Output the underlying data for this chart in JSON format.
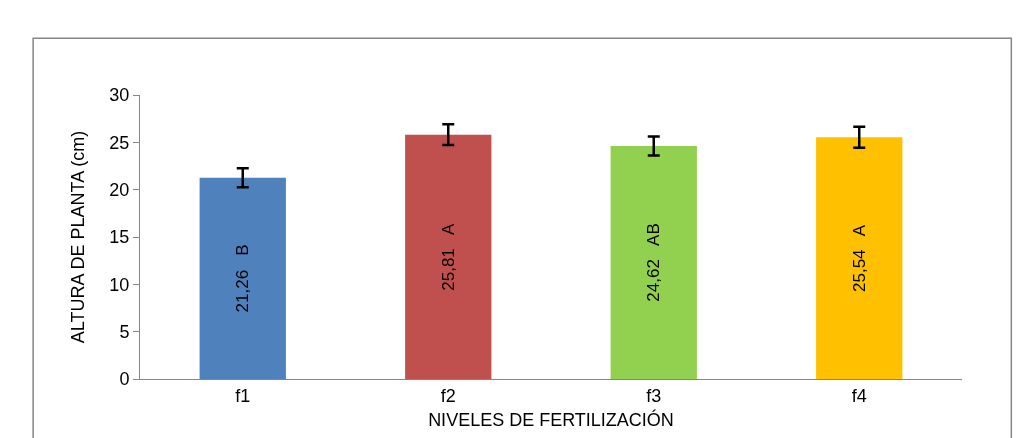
{
  "chart_data": {
    "type": "bar",
    "xlabel": "NIVELES DE FERTILIZACIÓN",
    "ylabel": "ALTURA DE PLANTA (cm)",
    "categories": [
      "f1",
      "f2",
      "f3",
      "f4"
    ],
    "values": [
      21.26,
      25.81,
      24.62,
      25.54
    ],
    "colors": [
      "#4f81bd",
      "#c0504d",
      "#92d050",
      "#ffc000"
    ],
    "errors": [
      1.0,
      1.1,
      1.0,
      1.1
    ],
    "value_labels": [
      "21,26   B",
      "25,81   A",
      "24,62   AB",
      "25,54   A"
    ],
    "ylim": [
      0,
      30
    ],
    "yticks": [
      0,
      5,
      10,
      15,
      20,
      25,
      30
    ],
    "legend": false
  }
}
